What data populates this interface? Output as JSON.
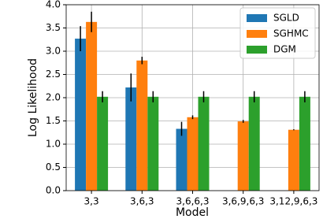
{
  "chart_data": {
    "type": "bar",
    "x_label": "Model",
    "y_label": "Log Likelihood",
    "categories": [
      "3,3",
      "3,6,3",
      "3,6,6,3",
      "3,6,9,6,3",
      "3,12,9,6,3"
    ],
    "series": [
      {
        "name": "SGLD",
        "color": "#1f77b4",
        "values": [
          3.27,
          2.22,
          1.33,
          null,
          null
        ],
        "errors": [
          0.27,
          0.3,
          0.15,
          null,
          null
        ]
      },
      {
        "name": "SGHMC",
        "color": "#ff7f0e",
        "values": [
          3.63,
          2.8,
          1.58,
          1.49,
          1.31
        ],
        "errors": [
          0.22,
          0.08,
          0.04,
          0.03,
          0.01
        ]
      },
      {
        "name": "DGM",
        "color": "#2ca02c",
        "values": [
          2.02,
          2.02,
          2.02,
          2.02,
          2.02
        ],
        "errors": [
          0.12,
          0.12,
          0.12,
          0.12,
          0.12
        ]
      }
    ],
    "ylim": [
      0,
      4
    ],
    "yticks": [
      {
        "value": 0,
        "label": "0.0"
      },
      0.5,
      {
        "value": 1,
        "label": "1.0"
      },
      1.5,
      {
        "value": 2,
        "label": "2.0"
      },
      2.5,
      {
        "value": 3,
        "label": "3.0"
      },
      3.5,
      {
        "value": 4,
        "label": "4.0"
      }
    ],
    "grid": true,
    "legend": "upper right"
  }
}
